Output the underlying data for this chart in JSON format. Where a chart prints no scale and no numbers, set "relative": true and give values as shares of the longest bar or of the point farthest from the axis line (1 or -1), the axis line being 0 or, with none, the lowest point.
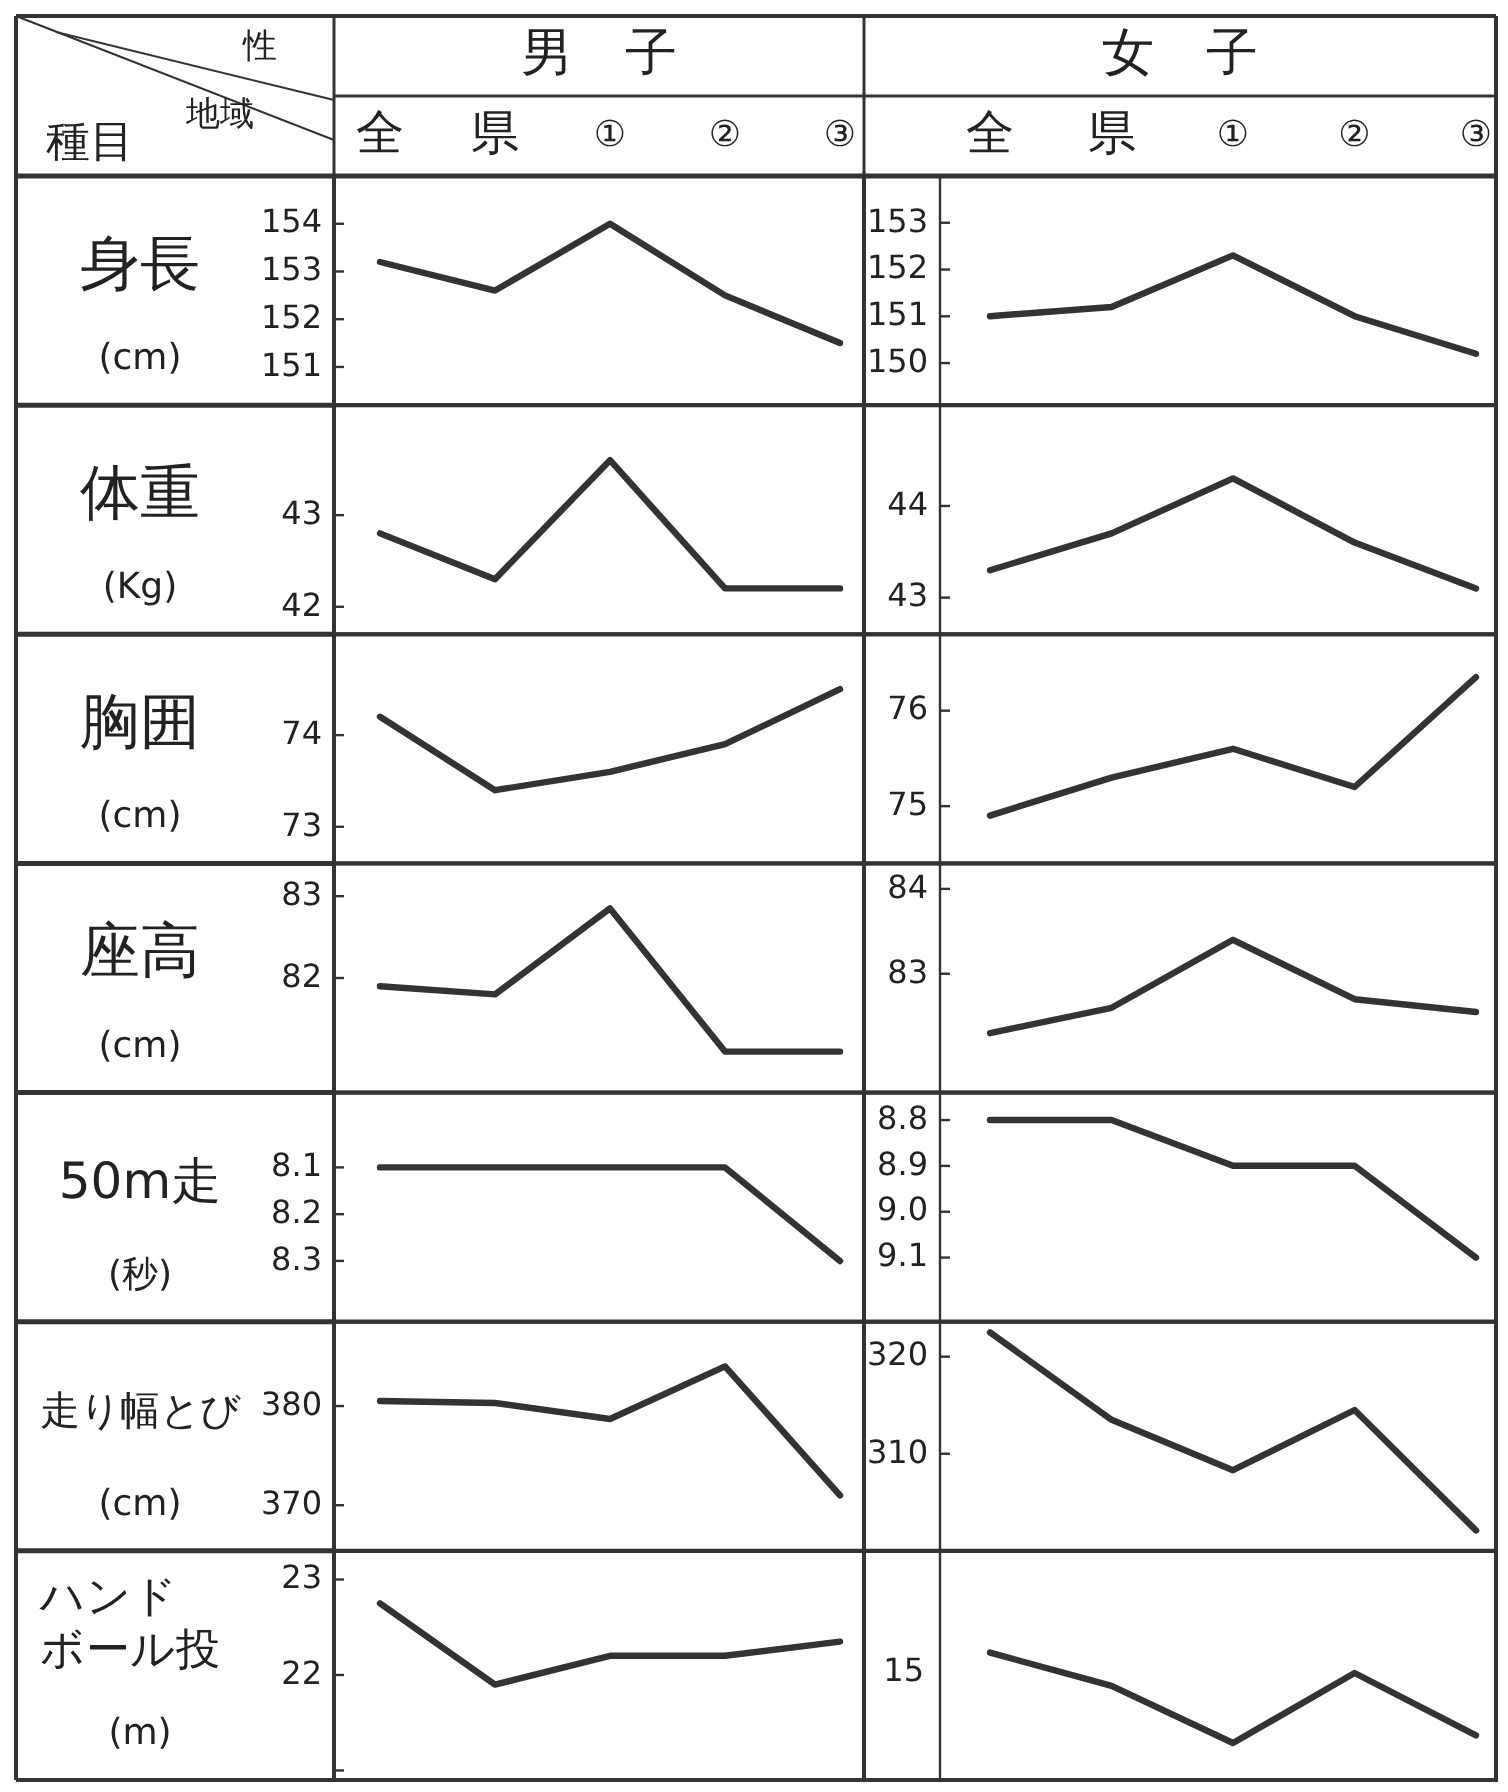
{
  "chart_data": [
    {
      "type": "line",
      "title": "身長",
      "subtitle": "(cm)",
      "xlabel": "男　子",
      "annotations": [
        "性",
        "地域",
        "種目"
      ],
      "categories": [
        "全",
        "県",
        "①",
        "②",
        "③"
      ],
      "values": [
        153.2,
        152.6,
        154.0,
        152.5,
        151.5
      ],
      "color": "#333333",
      "ylim": [
        150.2,
        155
      ],
      "yticks": [
        151,
        152,
        153,
        154
      ]
    },
    {
      "type": "line",
      "xlabel": "女　子",
      "categories": [
        "全",
        "県",
        "①",
        "②",
        "③"
      ],
      "values": [
        151.0,
        151.2,
        152.3,
        151.0,
        150.2
      ],
      "color": "#333333",
      "ylim": [
        149.1,
        154
      ],
      "yticks": [
        150,
        151,
        152,
        153
      ]
    },
    {
      "type": "line",
      "title": "体重",
      "subtitle": "(Kg)",
      "categories": [
        null,
        null,
        null,
        null,
        null
      ],
      "values": [
        42.8,
        42.3,
        43.6,
        42.2,
        42.2
      ],
      "color": "#333333",
      "ylim": [
        41.7,
        44.2
      ],
      "yticks": [
        42,
        43
      ],
      "tick_labels": "y"
    },
    {
      "type": "line",
      "categories": [
        null,
        null,
        null,
        null,
        null
      ],
      "values": [
        43.3,
        43.7,
        44.3,
        43.6,
        43.1
      ],
      "color": "#333333",
      "ylim": [
        42.6,
        45.1
      ],
      "yticks": [
        43,
        44
      ],
      "tick_labels": "y"
    },
    {
      "type": "line",
      "title": "胸囲",
      "subtitle": "(cm)",
      "categories": [
        null,
        null,
        null,
        null,
        null
      ],
      "values": [
        74.2,
        73.4,
        73.6,
        73.9,
        74.5
      ],
      "color": "#333333",
      "ylim": [
        72.6,
        75.1
      ],
      "yticks": [
        73,
        74
      ],
      "tick_labels": "y"
    },
    {
      "type": "line",
      "categories": [
        null,
        null,
        null,
        null,
        null
      ],
      "values": [
        74.9,
        75.3,
        75.6,
        75.2,
        76.35
      ],
      "color": "#333333",
      "ylim": [
        74.4,
        76.8
      ],
      "yticks": [
        75,
        76
      ],
      "tick_labels": "y"
    },
    {
      "type": "line",
      "title": "座高",
      "subtitle": "(cm)",
      "categories": [
        null,
        null,
        null,
        null,
        null
      ],
      "values": [
        81.9,
        81.8,
        82.85,
        81.1,
        81.1
      ],
      "color": "#333333",
      "ylim": [
        80.6,
        83.4
      ],
      "yticks": [
        82,
        83
      ],
      "tick_labels": "y"
    },
    {
      "type": "line",
      "categories": [
        null,
        null,
        null,
        null,
        null
      ],
      "values": [
        82.3,
        82.6,
        83.4,
        82.7,
        82.55
      ],
      "color": "#333333",
      "ylim": [
        81.6,
        84.3
      ],
      "yticks": [
        83,
        84
      ],
      "tick_labels": "y"
    },
    {
      "type": "line",
      "title": "50m走",
      "subtitle": "(秒)",
      "categories": [
        null,
        null,
        null,
        null,
        null
      ],
      "values": [
        8.1,
        8.1,
        8.1,
        8.1,
        8.3
      ],
      "color": "#333333",
      "ylim": [
        8.43,
        7.94
      ],
      "yticks": [
        8.1,
        8.2,
        8.3
      ],
      "tick_labels": "y"
    },
    {
      "type": "line",
      "categories": [
        null,
        null,
        null,
        null,
        null
      ],
      "values": [
        8.8,
        8.8,
        8.9,
        8.9,
        9.1
      ],
      "color": "#333333",
      "ylim": [
        9.24,
        8.74
      ],
      "yticks": [
        8.8,
        8.9,
        {
          "value": 9.0,
          "label": "9.0"
        },
        9.1
      ],
      "tick_labels": "y"
    },
    {
      "type": "line",
      "title": "走り幅とび",
      "subtitle": "(cm)",
      "categories": [
        null,
        null,
        null,
        null,
        null
      ],
      "values": [
        380.5,
        380.3,
        378.7,
        384,
        371
      ],
      "color": "#333333",
      "ylim": [
        365.4,
        388.5
      ],
      "yticks": [
        370,
        380
      ],
      "tick_labels": "y"
    },
    {
      "type": "line",
      "categories": [
        null,
        null,
        null,
        null,
        null
      ],
      "values": [
        322.5,
        313.5,
        308.3,
        314.5,
        302.1
      ],
      "color": "#333333",
      "ylim": [
        300,
        323.6
      ],
      "yticks": [
        310,
        320
      ],
      "tick_labels": "y"
    },
    {
      "type": "line",
      "title": "ハンドボール投",
      "subtitle": "(m)",
      "categories": [
        null,
        null,
        null,
        null,
        null
      ],
      "values": [
        22.75,
        21.9,
        22.2,
        22.2,
        22.35
      ],
      "color": "#333333",
      "ylim": [
        20.9,
        23.3
      ],
      "yticks": [
        {
          "value": 21,
          "label": null
        },
        22,
        23
      ],
      "tick_labels": "y"
    },
    {
      "type": "line",
      "relative": true,
      "annotations": [
        "15"
      ],
      "categories": [
        null,
        null,
        null,
        null,
        null
      ],
      "values": [
        1,
        0.74,
        0.29,
        0.84,
        0.35
      ],
      "color": "#333333",
      "tick_labels": "y"
    }
  ]
}
